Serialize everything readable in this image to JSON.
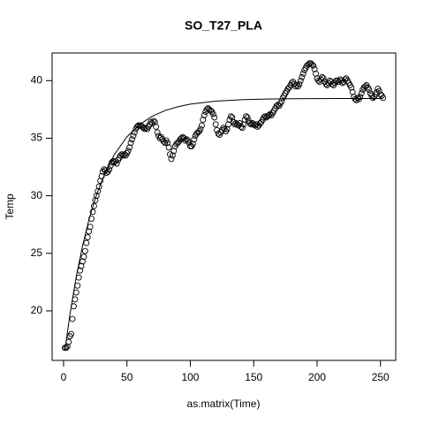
{
  "chart_data": {
    "type": "scatter",
    "title": "SO_T27_PLA",
    "x_label": "as.matrix(Time)",
    "y_label": "Temp",
    "xlim": [
      -9.04,
      262.04
    ],
    "ylim": [
      15.7,
      42.4
    ],
    "xticks": [
      0,
      50,
      100,
      150,
      200,
      250
    ],
    "yticks": [
      20,
      25,
      30,
      35,
      40
    ],
    "series": [
      {
        "type": "scatter",
        "color": "#000000",
        "x": [
          1,
          2,
          3,
          4,
          5,
          6,
          7,
          8,
          9,
          10,
          11,
          12,
          13,
          14,
          15,
          16,
          17,
          18,
          19,
          20,
          21,
          22,
          23,
          24,
          25,
          26,
          27,
          28,
          29,
          30,
          31,
          32,
          33,
          34,
          35,
          36,
          37,
          38,
          39,
          40,
          41,
          42,
          43,
          44,
          45,
          46,
          47,
          48,
          49,
          50,
          51,
          52,
          53,
          54,
          55,
          56,
          57,
          58,
          59,
          60,
          61,
          62,
          63,
          64,
          65,
          66,
          67,
          68,
          69,
          70,
          71,
          72,
          73,
          74,
          75,
          76,
          77,
          78,
          79,
          80,
          81,
          82,
          83,
          84,
          85,
          86,
          87,
          88,
          89,
          90,
          91,
          92,
          93,
          94,
          95,
          96,
          97,
          98,
          99,
          100,
          101,
          102,
          103,
          104,
          105,
          106,
          107,
          108,
          109,
          110,
          111,
          112,
          113,
          114,
          115,
          116,
          117,
          118,
          119,
          120,
          121,
          122,
          123,
          124,
          125,
          126,
          127,
          128,
          129,
          130,
          131,
          132,
          133,
          134,
          135,
          136,
          137,
          138,
          139,
          140,
          141,
          142,
          143,
          144,
          145,
          146,
          147,
          148,
          149,
          150,
          151,
          152,
          153,
          154,
          155,
          156,
          157,
          158,
          159,
          160,
          161,
          162,
          163,
          164,
          165,
          166,
          167,
          168,
          169,
          170,
          171,
          172,
          173,
          174,
          175,
          176,
          177,
          178,
          179,
          180,
          181,
          182,
          183,
          184,
          185,
          186,
          187,
          188,
          189,
          190,
          191,
          192,
          193,
          194,
          195,
          196,
          197,
          198,
          199,
          200,
          201,
          202,
          203,
          204,
          205,
          206,
          207,
          208,
          209,
          210,
          211,
          212,
          213,
          214,
          215,
          216,
          217,
          218,
          219,
          220,
          221,
          222,
          223,
          224,
          225,
          226,
          227,
          228,
          229,
          230,
          231,
          232,
          233,
          234,
          235,
          236,
          237,
          238,
          239,
          240,
          241,
          242,
          243,
          244,
          245,
          246,
          247,
          248,
          249,
          250,
          251,
          252
        ],
        "values": [
          16.8,
          16.8,
          16.9,
          17.3,
          17.8,
          18.0,
          19.3,
          20.4,
          21.0,
          21.6,
          22.2,
          22.9,
          23.5,
          23.9,
          24.3,
          24.7,
          25.2,
          25.9,
          26.4,
          26.9,
          27.3,
          28.0,
          28.6,
          29.1,
          29.6,
          30.0,
          30.4,
          30.8,
          31.3,
          31.7,
          32.1,
          32.3,
          32.2,
          32.0,
          32.1,
          32.3,
          32.6,
          32.9,
          33.0,
          32.9,
          33.0,
          32.8,
          33.1,
          33.3,
          33.5,
          33.6,
          33.5,
          33.6,
          33.5,
          33.7,
          33.9,
          34.2,
          34.6,
          34.9,
          35.2,
          35.5,
          35.8,
          36.0,
          36.1,
          36.1,
          36.1,
          36.0,
          35.9,
          35.8,
          35.9,
          35.8,
          36.0,
          36.2,
          36.4,
          36.3,
          36.5,
          36.4,
          36.0,
          35.5,
          35.2,
          35.0,
          35.1,
          34.9,
          34.7,
          34.6,
          34.8,
          34.6,
          34.2,
          33.6,
          33.2,
          33.5,
          33.9,
          34.3,
          34.5,
          34.6,
          34.7,
          34.9,
          35.0,
          35.1,
          35.0,
          34.8,
          34.9,
          34.8,
          34.6,
          34.3,
          34.3,
          34.5,
          34.9,
          35.2,
          35.4,
          35.5,
          35.6,
          35.8,
          36.1,
          36.6,
          37.0,
          37.3,
          37.5,
          37.6,
          37.5,
          37.4,
          37.3,
          37.1,
          36.8,
          36.2,
          35.7,
          35.4,
          35.3,
          35.5,
          35.7,
          35.9,
          35.8,
          35.6,
          35.8,
          36.2,
          36.6,
          36.9,
          36.8,
          36.4,
          36.2,
          36.3,
          36.2,
          36.1,
          36.3,
          36.0,
          35.9,
          36.2,
          36.6,
          36.9,
          36.8,
          36.5,
          36.3,
          36.2,
          36.3,
          36.2,
          36.1,
          36.2,
          36.0,
          36.1,
          36.3,
          36.4,
          36.6,
          36.8,
          36.9,
          36.8,
          36.9,
          37.0,
          37.1,
          37.0,
          37.2,
          37.4,
          37.6,
          37.8,
          37.9,
          37.8,
          38.0,
          38.2,
          38.5,
          38.7,
          38.9,
          39.1,
          39.3,
          39.4,
          39.6,
          39.8,
          39.9,
          39.7,
          39.5,
          39.6,
          39.5,
          39.7,
          40.0,
          40.3,
          40.6,
          40.9,
          41.1,
          41.3,
          41.4,
          41.5,
          41.5,
          41.4,
          41.3,
          41.0,
          40.6,
          40.2,
          40.0,
          39.9,
          40.1,
          40.3,
          40.2,
          39.9,
          39.7,
          39.6,
          39.8,
          40.0,
          39.9,
          39.7,
          39.6,
          39.8,
          40.0,
          40.0,
          39.9,
          40.1,
          40.0,
          39.8,
          39.9,
          40.1,
          40.2,
          40.0,
          39.8,
          39.6,
          39.4,
          39.0,
          38.6,
          38.4,
          38.3,
          38.5,
          38.4,
          38.6,
          38.9,
          39.2,
          39.4,
          39.5,
          39.6,
          39.4,
          39.2,
          38.9,
          38.7,
          38.5,
          38.6,
          38.8,
          39.0,
          39.3,
          39.1,
          38.8,
          38.7,
          38.5
        ]
      },
      {
        "type": "line",
        "color": "#000000",
        "x": [
          1,
          5,
          10,
          15,
          20,
          25,
          30,
          40,
          50,
          60,
          70,
          80,
          90,
          100,
          120,
          140,
          160,
          180,
          200,
          220,
          240,
          252
        ],
        "values": [
          16.55,
          19.68,
          22.97,
          25.66,
          27.92,
          29.75,
          31.27,
          33.57,
          35.12,
          36.19,
          36.91,
          37.4,
          37.73,
          37.96,
          38.22,
          38.34,
          38.4,
          38.43,
          38.44,
          38.45,
          38.45,
          38.45
        ]
      }
    ]
  }
}
